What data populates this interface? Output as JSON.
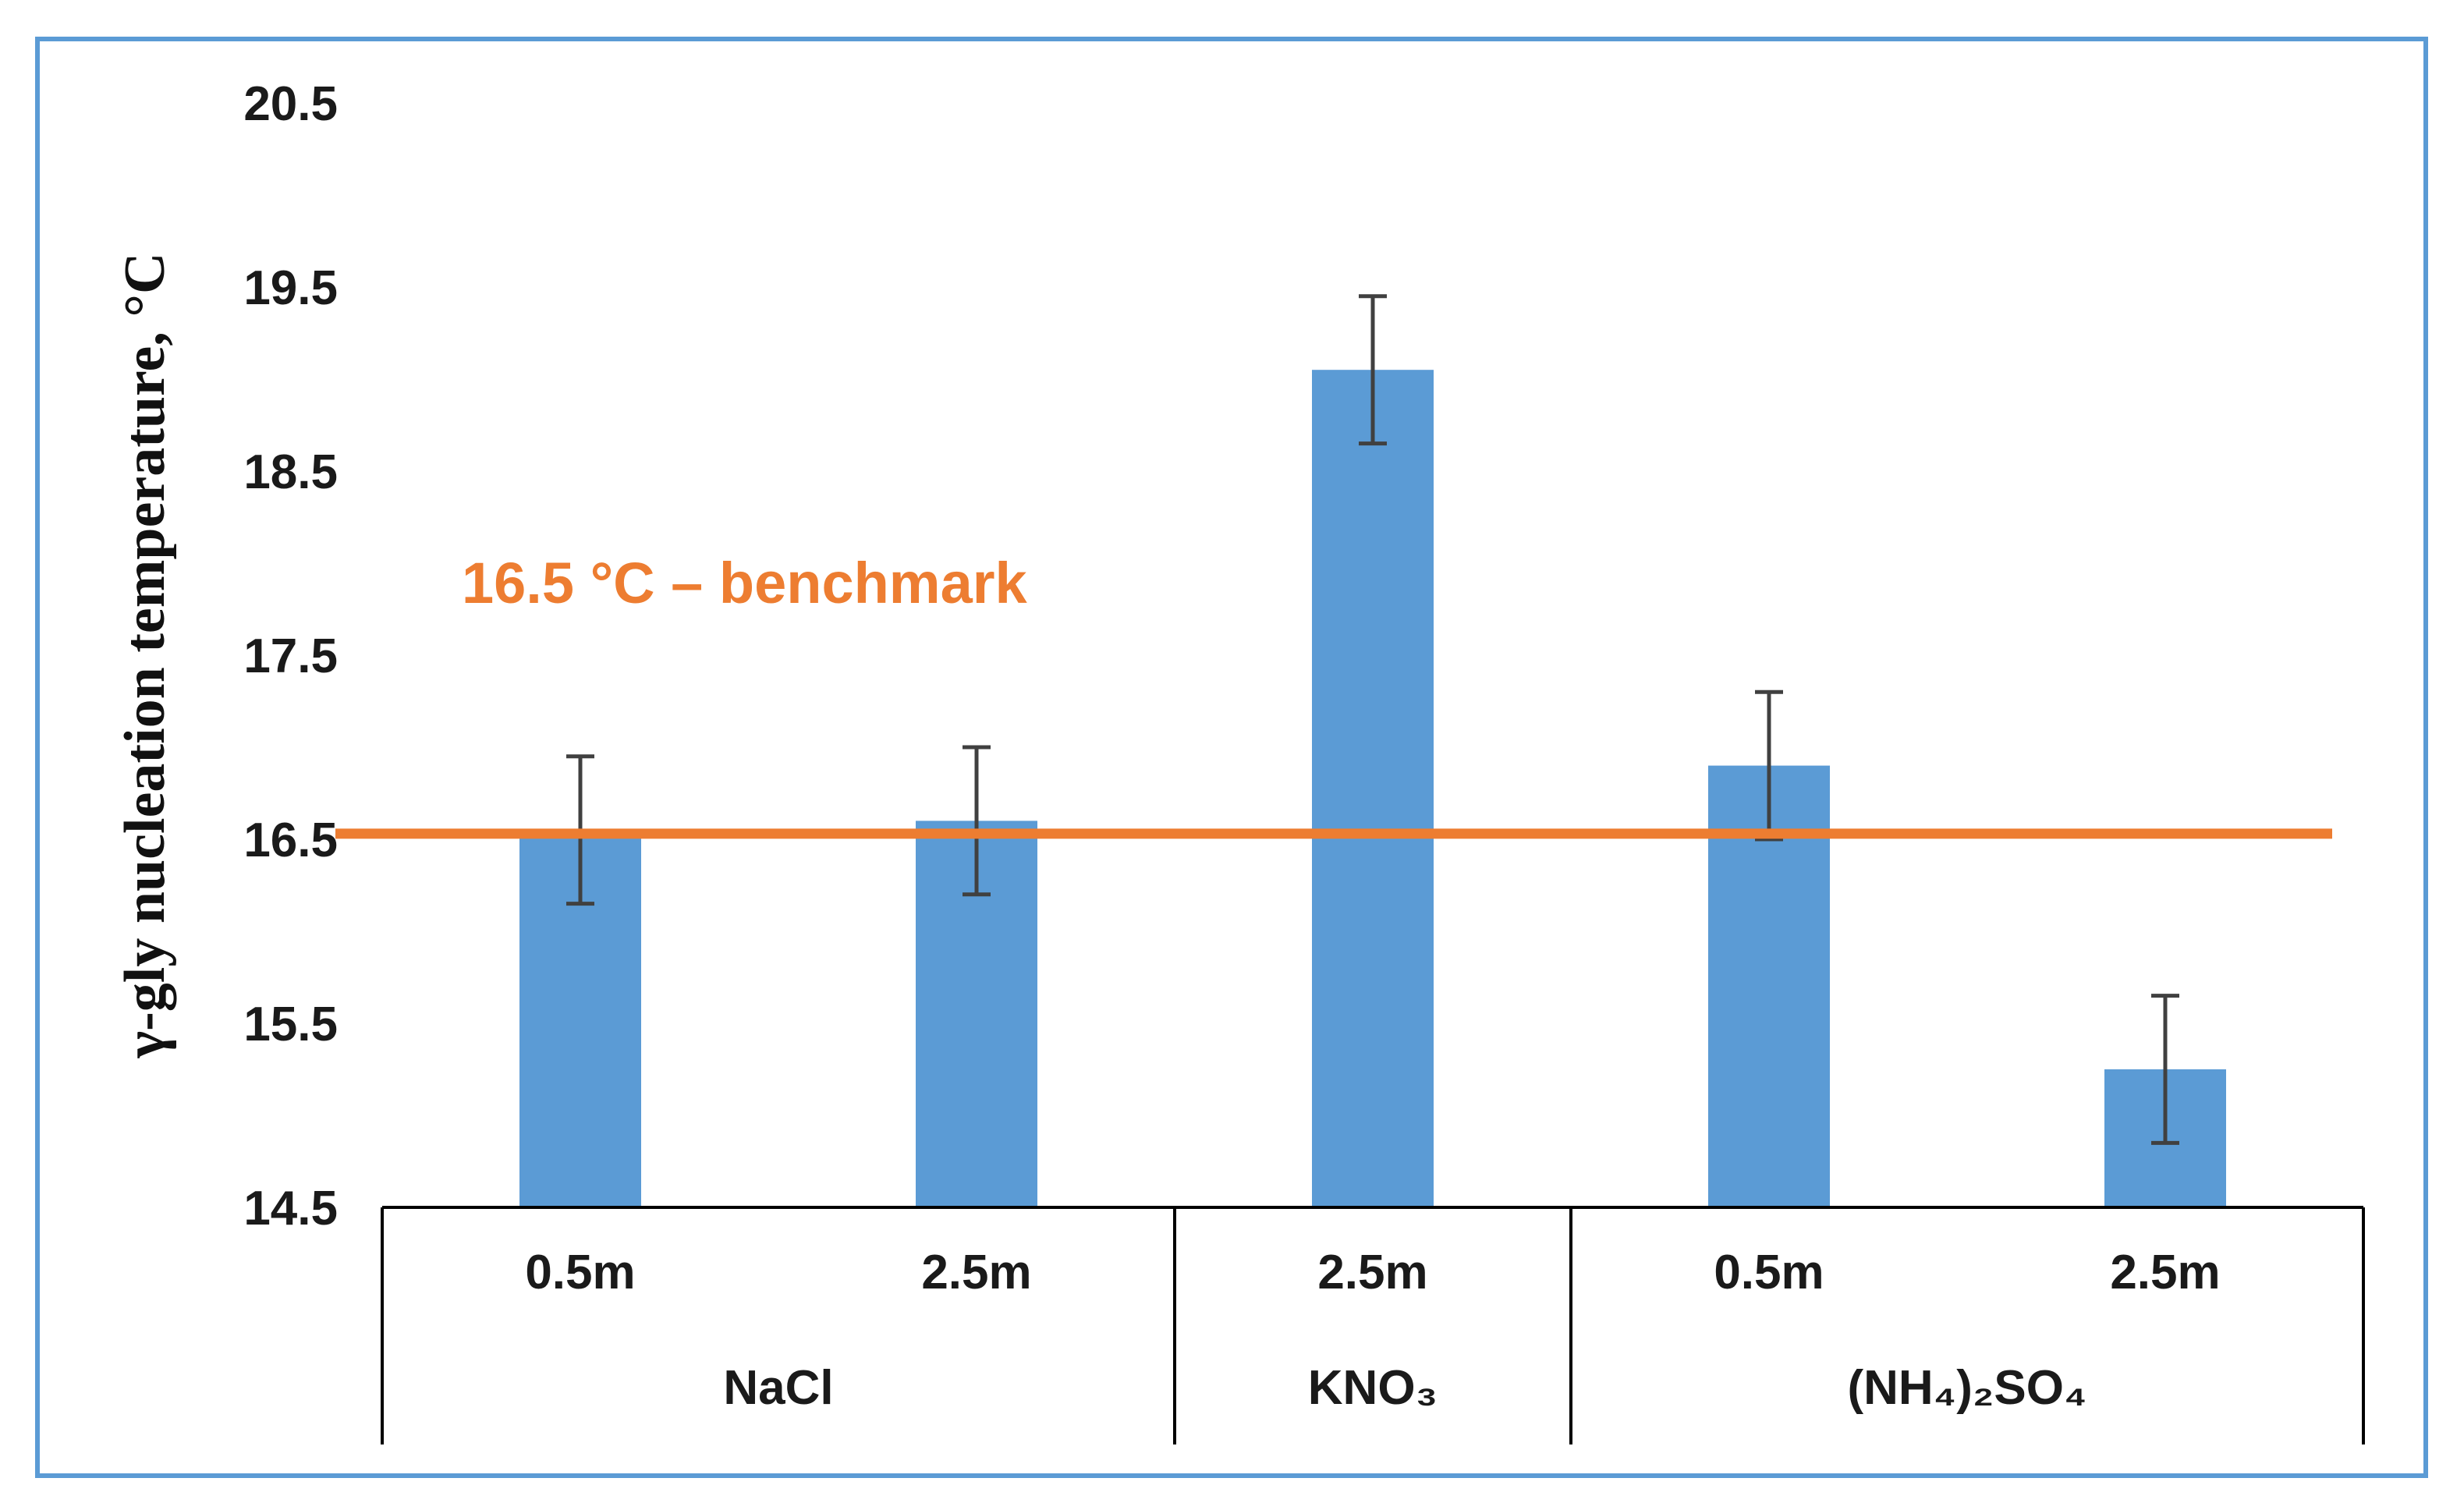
{
  "chart_data": {
    "type": "bar",
    "title": "",
    "ylabel": "γ-gly  nucleation  temperature, °C",
    "xlabel": "",
    "ylim": [
      14.5,
      20.5
    ],
    "yticks": [
      14.5,
      15.5,
      16.5,
      17.5,
      18.5,
      19.5,
      20.5
    ],
    "ytick_labels": [
      "14.5",
      "15.5",
      "16.5",
      "17.5",
      "18.5",
      "19.5",
      "20.5"
    ],
    "categories": [
      "0.5m",
      "2.5m",
      "2.5m",
      "0.5m",
      "2.5m"
    ],
    "groups": [
      {
        "label": "NaCl",
        "count": 2
      },
      {
        "label": "KNO₃",
        "count": 1
      },
      {
        "label": "(NH₄)₂SO₄",
        "count": 2
      }
    ],
    "values": [
      16.55,
      16.6,
      19.05,
      16.9,
      15.25
    ],
    "error": [
      0.4,
      0.4,
      0.4,
      0.4,
      0.4
    ],
    "benchmark": {
      "value": 16.53,
      "label": "16.5 °C – benchmark"
    },
    "colors": {
      "bar": "#5b9bd5",
      "benchmark": "#ed7d31",
      "error_bar": "#404040",
      "frame": "#5b9bd5",
      "axis": "#000000"
    }
  }
}
